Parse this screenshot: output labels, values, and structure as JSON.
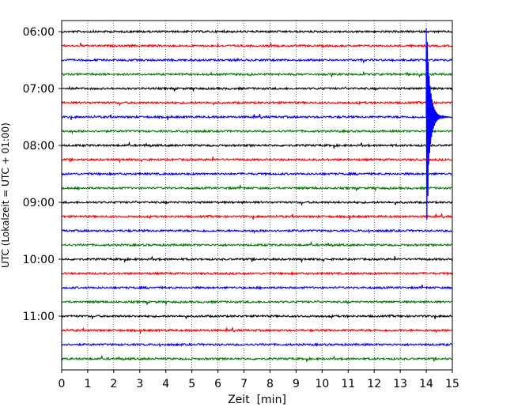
{
  "chart_data": {
    "type": "line",
    "xlabel": "Zeit  [min]",
    "ylabel": "UTC (Lokalzeit = UTC + 01:00)",
    "xlim": [
      0,
      15
    ],
    "x_ticks": [
      0,
      1,
      2,
      3,
      4,
      5,
      6,
      7,
      8,
      9,
      10,
      11,
      12,
      13,
      14,
      15
    ],
    "x_tick_labels": [
      "0",
      "1",
      "2",
      "3",
      "4",
      "5",
      "6",
      "7",
      "8",
      "9",
      "10",
      "11",
      "12",
      "13",
      "14",
      "15"
    ],
    "y_tick_labels": [
      "06:00",
      "07:00",
      "08:00",
      "09:00",
      "10:00",
      "11:00"
    ],
    "y_ticks_trace_index": [
      0,
      4,
      8,
      12,
      16,
      20
    ],
    "grid_x": true,
    "grid_style": "dotted",
    "trace_interval_minutes": 15,
    "traces": [
      {
        "start": "06:00",
        "color": "#000000"
      },
      {
        "start": "06:15",
        "color": "#ff0000"
      },
      {
        "start": "06:30",
        "color": "#0000ff"
      },
      {
        "start": "06:45",
        "color": "#008000"
      },
      {
        "start": "07:00",
        "color": "#000000"
      },
      {
        "start": "07:15",
        "color": "#ff0000"
      },
      {
        "start": "07:30",
        "color": "#0000ff"
      },
      {
        "start": "07:45",
        "color": "#008000"
      },
      {
        "start": "08:00",
        "color": "#000000"
      },
      {
        "start": "08:15",
        "color": "#ff0000"
      },
      {
        "start": "08:30",
        "color": "#0000ff"
      },
      {
        "start": "08:45",
        "color": "#008000"
      },
      {
        "start": "09:00",
        "color": "#000000"
      },
      {
        "start": "09:15",
        "color": "#ff0000"
      },
      {
        "start": "09:30",
        "color": "#0000ff"
      },
      {
        "start": "09:45",
        "color": "#008000"
      },
      {
        "start": "10:00",
        "color": "#000000"
      },
      {
        "start": "10:15",
        "color": "#ff0000"
      },
      {
        "start": "10:30",
        "color": "#0000ff"
      },
      {
        "start": "10:45",
        "color": "#008000"
      },
      {
        "start": "11:00",
        "color": "#000000"
      },
      {
        "start": "11:15",
        "color": "#ff0000"
      },
      {
        "start": "11:30",
        "color": "#0000ff"
      },
      {
        "start": "11:45",
        "color": "#008000"
      }
    ],
    "event": {
      "trace_start": "07:30",
      "minute": 14.0,
      "color": "#0000ff"
    }
  }
}
